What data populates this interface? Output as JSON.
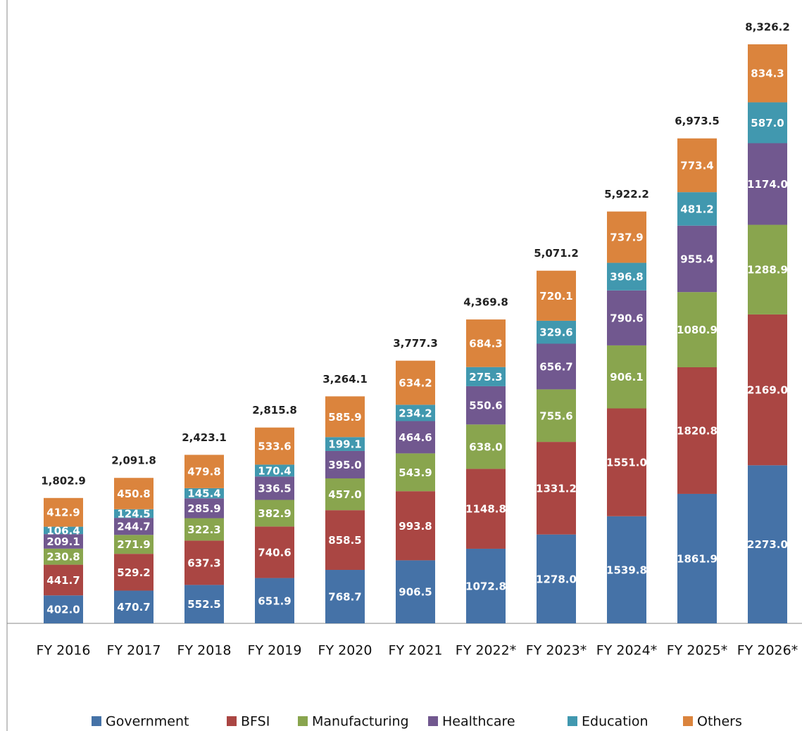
{
  "chart_data": {
    "type": "stacked_bar",
    "categories": [
      "FY 2016",
      "FY 2017",
      "FY 2018",
      "FY 2019",
      "FY 2020",
      "FY 2021",
      "FY 2022*",
      "FY 2023*",
      "FY 2024*",
      "FY 2025*",
      "FY 2026*"
    ],
    "series": [
      {
        "name": "Government",
        "color": "#4572a7",
        "values": [
          402.0,
          470.7,
          552.5,
          651.9,
          768.7,
          906.5,
          1072.8,
          1278.0,
          1539.8,
          1861.9,
          2273.0
        ],
        "value_labels": [
          "402.0",
          "470.7",
          "552.5",
          "651.9",
          "768.7",
          "906.5",
          "1072.8",
          "1278.0",
          "1539.8",
          "1861.9",
          "2273.0"
        ]
      },
      {
        "name": "BFSI",
        "color": "#aa4643",
        "values": [
          441.7,
          529.2,
          637.3,
          740.6,
          858.5,
          993.8,
          1148.8,
          1331.2,
          1551.0,
          1820.8,
          2169.0
        ],
        "value_labels": [
          "441.7",
          "529.2",
          "637.3",
          "740.6",
          "858.5",
          "993.8",
          "1148.8",
          "1331.2",
          "1551.0",
          "1820.8",
          "2169.0"
        ]
      },
      {
        "name": "Manufacturing",
        "color": "#89a54e",
        "values": [
          230.8,
          271.9,
          322.3,
          382.9,
          457.0,
          543.9,
          638.0,
          755.6,
          906.1,
          1080.9,
          1288.9
        ],
        "value_labels": [
          "230.8",
          "271.9",
          "322.3",
          "382.9",
          "457.0",
          "543.9",
          "638.0",
          "755.6",
          "906.1",
          "1080.9",
          "1288.9"
        ]
      },
      {
        "name": "Healthcare",
        "color": "#71588f",
        "values": [
          209.1,
          244.7,
          285.9,
          336.5,
          395.0,
          464.6,
          550.6,
          656.7,
          790.6,
          955.4,
          1174.0
        ],
        "value_labels": [
          "209.1",
          "244.7",
          "285.9",
          "336.5",
          "395.0",
          "464.6",
          "550.6",
          "656.7",
          "790.6",
          "955.4",
          "1174.0"
        ]
      },
      {
        "name": "Education",
        "color": "#4198af",
        "values": [
          106.4,
          124.5,
          145.4,
          170.4,
          199.1,
          234.2,
          275.3,
          329.6,
          396.8,
          481.2,
          587.0
        ],
        "value_labels": [
          "106.4",
          "124.5",
          "145.4",
          "170.4",
          "199.1",
          "234.2",
          "275.3",
          "329.6",
          "396.8",
          "481.2",
          "587.0"
        ]
      },
      {
        "name": "Others",
        "color": "#db843d",
        "values": [
          412.9,
          450.8,
          479.8,
          533.6,
          585.9,
          634.2,
          684.3,
          720.1,
          737.9,
          773.4,
          834.3
        ],
        "value_labels": [
          "412.9",
          "450.8",
          "479.8",
          "533.6",
          "585.9",
          "634.2",
          "684.3",
          "720.1",
          "737.9",
          "773.4",
          "834.3"
        ]
      }
    ],
    "totals": {
      "values": [
        1802.9,
        2091.8,
        2423.1,
        2815.8,
        3264.1,
        3777.3,
        4369.8,
        5071.2,
        5922.2,
        6973.5,
        8326.2
      ],
      "value_labels": [
        "1,802.9",
        "2,091.8",
        "2,423.1",
        "2,815.8",
        "3,264.1",
        "3,777.3",
        "4,369.8",
        "5,071.2",
        "5,922.2",
        "6,973.5",
        "8,326.2"
      ]
    },
    "legend": "bottom"
  }
}
